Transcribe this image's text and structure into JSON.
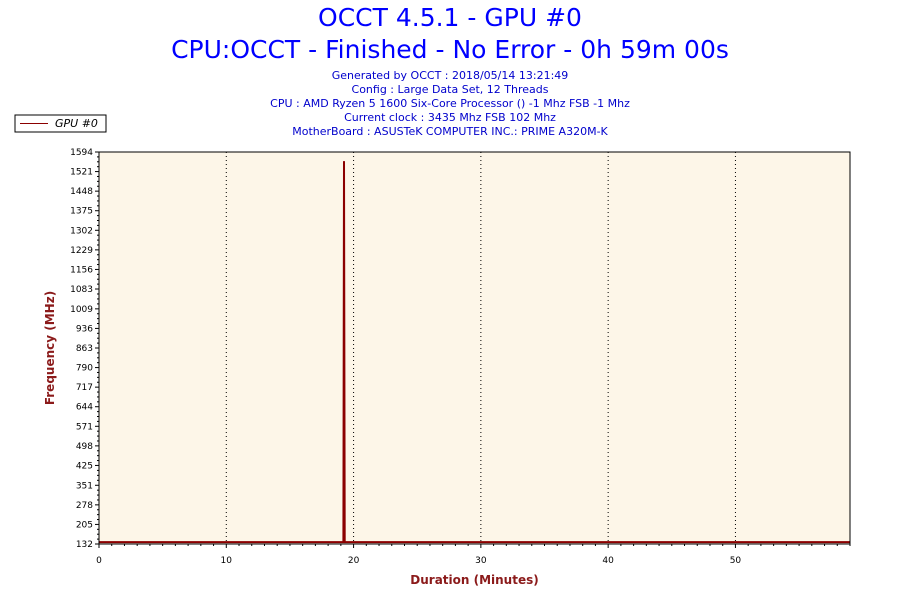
{
  "chart_data": {
    "type": "line",
    "title": "OCCT 4.5.1 - GPU #0",
    "subtitle": "CPU:OCCT - Finished - No Error - 0h 59m 00s",
    "info_lines": [
      "Generated by OCCT : 2018/05/14 13:21:49",
      "Config : Large Data Set, 12 Threads",
      "CPU : AMD Ryzen 5 1600 Six-Core Processor () -1 Mhz FSB -1 Mhz",
      "Current clock : 3435 Mhz FSB 102 Mhz",
      "MotherBoard : ASUSTeK COMPUTER INC.: PRIME A320M-K"
    ],
    "xlabel": "Duration (Minutes)",
    "ylabel": "Frequency (MHz)",
    "xlim": [
      0,
      59
    ],
    "ylim": [
      132,
      1594
    ],
    "x_ticks": [
      0,
      10,
      20,
      30,
      40,
      50
    ],
    "y_ticks": [
      132,
      205,
      278,
      351,
      425,
      498,
      571,
      644,
      717,
      790,
      863,
      936,
      1009,
      1083,
      1156,
      1229,
      1302,
      1375,
      1448,
      1521,
      1594
    ],
    "grid": "vertical dotted",
    "legend_position": "top-left",
    "plot_background": "#fdf6e8",
    "series": [
      {
        "name": "GPU #0",
        "color": "#8b0000",
        "x": [
          0,
          19.2,
          19.25,
          19.3,
          59
        ],
        "y": [
          139,
          139,
          1560,
          139,
          139
        ]
      }
    ]
  }
}
